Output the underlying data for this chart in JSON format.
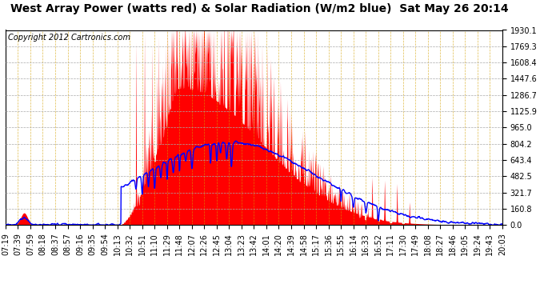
{
  "title": "West Array Power (watts red) & Solar Radiation (W/m2 blue)  Sat May 26 20:14",
  "copyright_text": "Copyright 2012 Cartronics.com",
  "background_color": "#ffffff",
  "grid_color": "#aaaaaa",
  "x_tick_labels": [
    "07:19",
    "07:39",
    "07:59",
    "08:18",
    "08:37",
    "08:57",
    "09:16",
    "09:35",
    "09:54",
    "10:13",
    "10:32",
    "10:51",
    "11:10",
    "11:29",
    "11:48",
    "12:07",
    "12:26",
    "12:45",
    "13:04",
    "13:23",
    "13:42",
    "14:01",
    "14:20",
    "14:39",
    "14:58",
    "15:17",
    "15:36",
    "15:55",
    "16:14",
    "16:33",
    "16:52",
    "17:11",
    "17:30",
    "17:49",
    "18:08",
    "18:27",
    "18:46",
    "19:05",
    "19:24",
    "19:43",
    "20:03"
  ],
  "y_ticks": [
    0.0,
    160.8,
    321.7,
    482.5,
    643.4,
    804.2,
    965.0,
    1125.9,
    1286.7,
    1447.6,
    1608.4,
    1769.3,
    1930.1
  ],
  "ymax": 1930.1,
  "ymin": 0.0,
  "fill_color": "red",
  "line_color": "blue",
  "line_width": 1.0,
  "title_fontsize": 10,
  "tick_fontsize": 7,
  "copyright_fontsize": 7,
  "seed": 123
}
